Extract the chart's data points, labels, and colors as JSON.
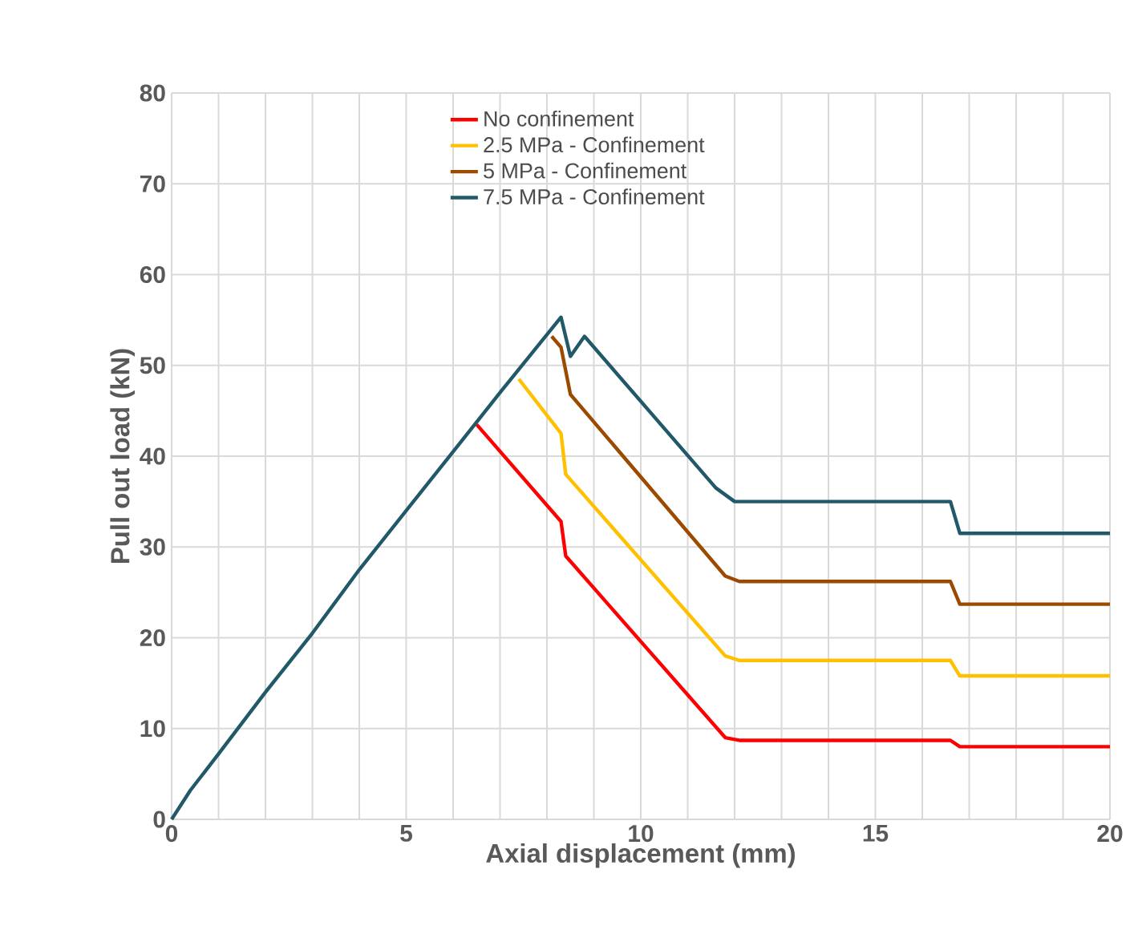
{
  "chart_data": {
    "type": "line",
    "xlabel": "Axial displacement (mm)",
    "ylabel": "Pull out load (kN)",
    "xlim": [
      0,
      20
    ],
    "ylim": [
      0,
      80
    ],
    "xticks": [
      0,
      {
        "value": 1,
        "label": null
      },
      {
        "value": 2,
        "label": null
      },
      {
        "value": 3,
        "label": null
      },
      {
        "value": 4,
        "label": null
      },
      5,
      {
        "value": 6,
        "label": null
      },
      {
        "value": 7,
        "label": null
      },
      {
        "value": 8,
        "label": null
      },
      {
        "value": 9,
        "label": null
      },
      10,
      {
        "value": 11,
        "label": null
      },
      {
        "value": 12,
        "label": null
      },
      {
        "value": 13,
        "label": null
      },
      {
        "value": 14,
        "label": null
      },
      15,
      {
        "value": 16,
        "label": null
      },
      {
        "value": 17,
        "label": null
      },
      {
        "value": 18,
        "label": null
      },
      {
        "value": 19,
        "label": null
      },
      20
    ],
    "yticks": [
      0,
      10,
      20,
      30,
      40,
      50,
      60,
      70,
      80
    ],
    "grid": true,
    "legend": "top",
    "series": [
      {
        "name": "No confinement",
        "color": "#ff0000",
        "x": [
          6.5,
          8.3,
          8.4,
          11.8,
          12.1,
          16.6,
          16.8,
          20
        ],
        "values": [
          43.5,
          32.8,
          29,
          9,
          8.7,
          8.7,
          8,
          8
        ]
      },
      {
        "name": "2.5 MPa - Confinement",
        "color": "#ffc000",
        "x": [
          7.4,
          8.3,
          8.4,
          11.8,
          12.1,
          16.6,
          16.8,
          20
        ],
        "values": [
          48.5,
          42.5,
          38,
          18,
          17.5,
          17.5,
          15.8,
          15.8
        ]
      },
      {
        "name": "5 MPa  - Confinement",
        "color": "#9c4a00",
        "x": [
          8.1,
          8.3,
          8.5,
          11.8,
          12.1,
          16.6,
          16.8,
          20
        ],
        "values": [
          53.2,
          52,
          46.8,
          26.8,
          26.2,
          26.2,
          23.7,
          23.7
        ]
      },
      {
        "name": "7.5 MPa - Confinement",
        "color": "#215968",
        "x": [
          0,
          0.4,
          1,
          2,
          3,
          4,
          5,
          6,
          7,
          8.3,
          8.5,
          8.8,
          11.6,
          12,
          16.6,
          16.8,
          20
        ],
        "values": [
          0,
          3.2,
          7.2,
          14,
          20.5,
          27.5,
          34,
          40.5,
          47,
          55.3,
          51,
          53.2,
          36.5,
          35,
          35,
          31.5,
          31.5
        ]
      }
    ]
  }
}
